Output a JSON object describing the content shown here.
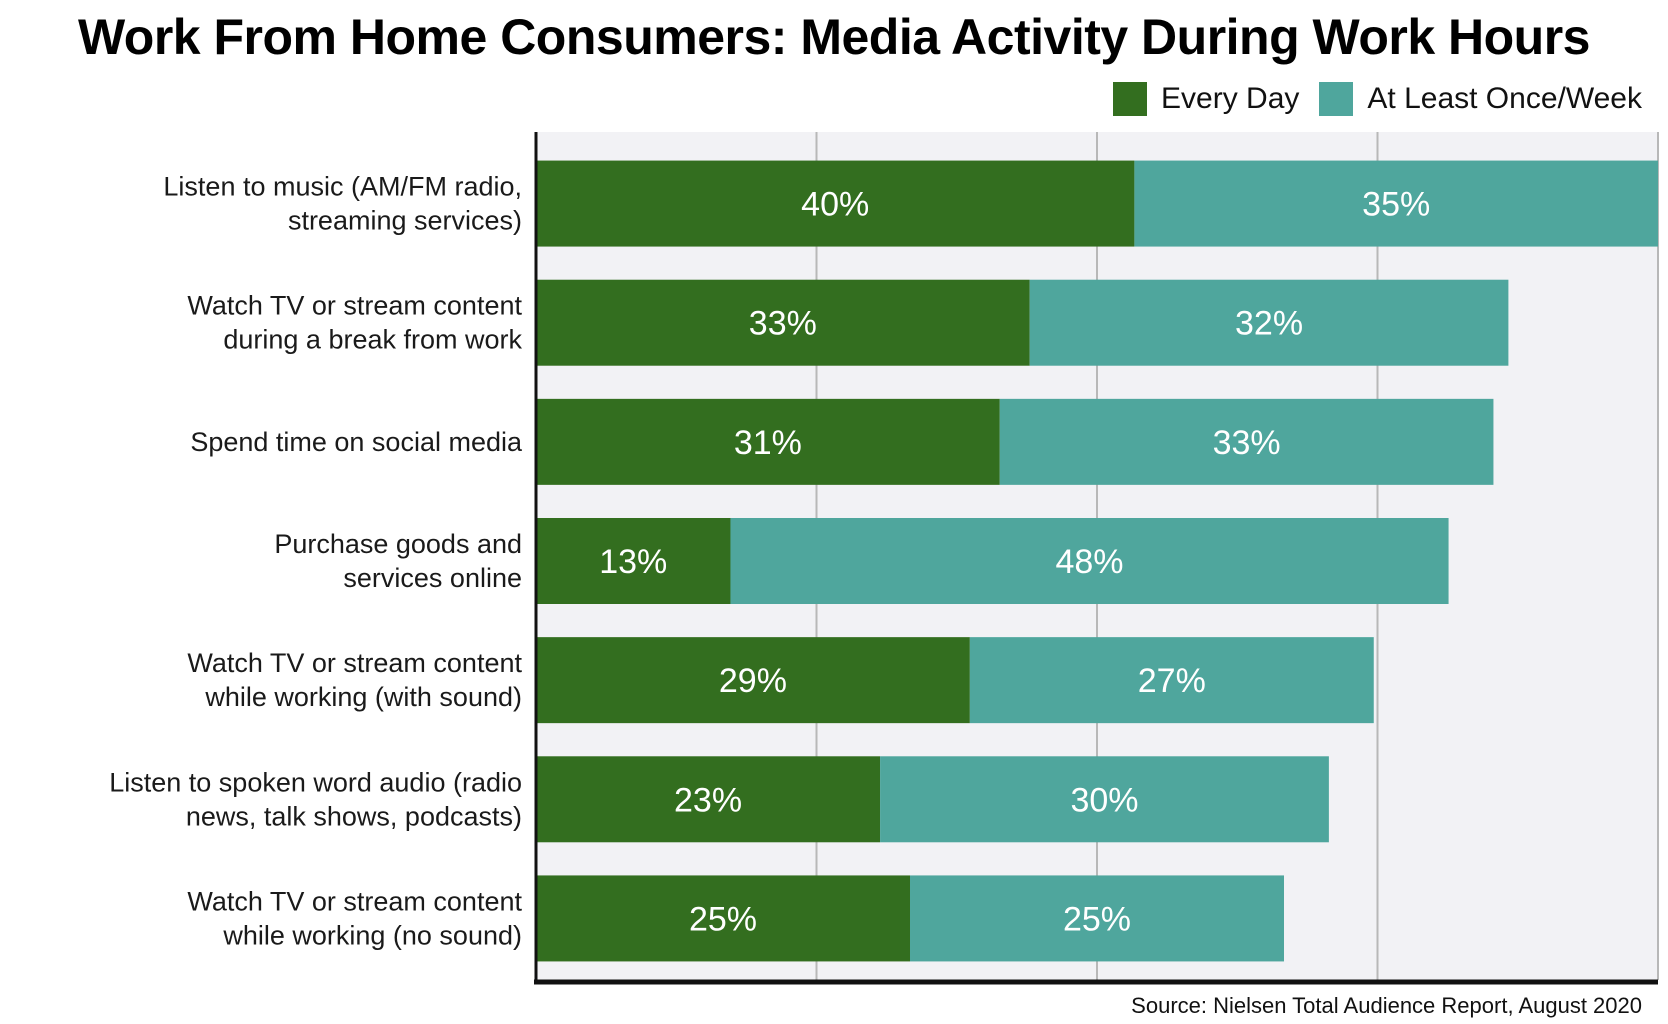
{
  "colors": {
    "every_day": "#336e1f",
    "weekly": "#4fa69d",
    "plot_bg": "#f2f2f5",
    "grid": "#b8b8b8"
  },
  "chart_data": {
    "type": "bar",
    "orientation": "horizontal",
    "stacked": true,
    "title": "Work From Home Consumers: Media Activity During Work Hours",
    "categories": [
      [
        "Listen to music (AM/FM radio,",
        "streaming services)"
      ],
      [
        "Watch TV or stream content",
        "during a break from work"
      ],
      [
        "Spend time on social media"
      ],
      [
        "Purchase goods and",
        "services online"
      ],
      [
        "Watch TV or stream content",
        "while working (with sound)"
      ],
      [
        "Listen to spoken word audio (radio",
        "news, talk shows, podcasts)"
      ],
      [
        "Watch TV or stream content",
        "while working (no sound)"
      ]
    ],
    "series": [
      {
        "name": "Every Day",
        "values": [
          40,
          33,
          31,
          13,
          29,
          23,
          25
        ],
        "labels": [
          "40%",
          "33%",
          "31%",
          "13%",
          "29%",
          "23%",
          "25%"
        ]
      },
      {
        "name": "At Least Once/Week",
        "values": [
          35,
          32,
          33,
          48,
          27,
          30,
          25
        ],
        "labels": [
          "35%",
          "32%",
          "33%",
          "48%",
          "27%",
          "30%",
          "25%"
        ]
      }
    ],
    "xlim": [
      0,
      75
    ],
    "grid": true,
    "legend_position": "top-right",
    "source": "Source: Nielsen Total Audience Report, August 2020"
  }
}
